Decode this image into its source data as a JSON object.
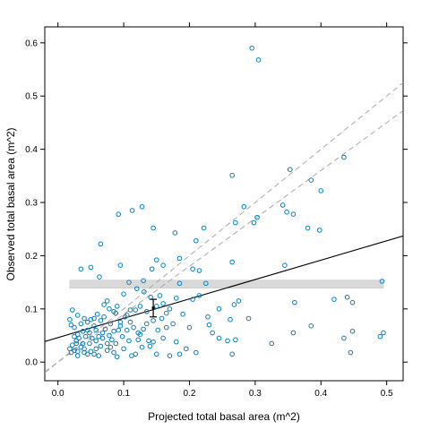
{
  "chart_data": {
    "type": "scatter",
    "xlabel": "Projected total basal area (m^2)",
    "ylabel": "Observed total basal area (m^2)",
    "xlim": [
      -0.02,
      0.525
    ],
    "ylim": [
      -0.035,
      0.63
    ],
    "x_ticks": [
      0.0,
      0.1,
      0.2,
      0.3,
      0.4,
      0.5
    ],
    "x_tick_labels": [
      "0.0",
      "0.1",
      "0.2",
      "0.3",
      "0.4",
      "0.5"
    ],
    "y_ticks": [
      0.0,
      0.1,
      0.2,
      0.3,
      0.4,
      0.5,
      0.6
    ],
    "y_tick_labels": [
      "0.0",
      "0.1",
      "0.2",
      "0.3",
      "0.4",
      "0.5",
      "0.6"
    ],
    "grid": false,
    "point_color": "#0080c0",
    "points": [
      [
        0.295,
        0.59
      ],
      [
        0.305,
        0.568
      ],
      [
        0.435,
        0.385
      ],
      [
        0.353,
        0.362
      ],
      [
        0.385,
        0.342
      ],
      [
        0.4,
        0.322
      ],
      [
        0.265,
        0.351
      ],
      [
        0.342,
        0.295
      ],
      [
        0.283,
        0.292
      ],
      [
        0.348,
        0.282
      ],
      [
        0.358,
        0.278
      ],
      [
        0.303,
        0.272
      ],
      [
        0.298,
        0.262
      ],
      [
        0.27,
        0.262
      ],
      [
        0.38,
        0.252
      ],
      [
        0.398,
        0.248
      ],
      [
        0.128,
        0.292
      ],
      [
        0.092,
        0.278
      ],
      [
        0.113,
        0.285
      ],
      [
        0.145,
        0.252
      ],
      [
        0.222,
        0.252
      ],
      [
        0.178,
        0.243
      ],
      [
        0.065,
        0.222
      ],
      [
        0.21,
        0.228
      ],
      [
        0.265,
        0.188
      ],
      [
        0.345,
        0.182
      ],
      [
        0.185,
        0.195
      ],
      [
        0.16,
        0.182
      ],
      [
        0.205,
        0.175
      ],
      [
        0.05,
        0.178
      ],
      [
        0.095,
        0.182
      ],
      [
        0.035,
        0.175
      ],
      [
        0.063,
        0.16
      ],
      [
        0.215,
        0.172
      ],
      [
        0.15,
        0.192
      ],
      [
        0.143,
        0.175
      ],
      [
        0.13,
        0.153
      ],
      [
        0.108,
        0.15
      ],
      [
        0.493,
        0.152
      ],
      [
        0.185,
        0.148
      ],
      [
        0.225,
        0.148
      ],
      [
        0.12,
        0.138
      ],
      [
        0.131,
        0.132
      ],
      [
        0.141,
        0.122
      ],
      [
        0.1,
        0.128
      ],
      [
        0.155,
        0.125
      ],
      [
        0.18,
        0.12
      ],
      [
        0.205,
        0.118
      ],
      [
        0.215,
        0.125
      ],
      [
        0.36,
        0.112
      ],
      [
        0.42,
        0.118
      ],
      [
        0.44,
        0.122
      ],
      [
        0.448,
        0.112
      ],
      [
        0.275,
        0.115
      ],
      [
        0.268,
        0.108
      ],
      [
        0.245,
        0.1
      ],
      [
        0.228,
        0.085
      ],
      [
        0.19,
        0.09
      ],
      [
        0.165,
        0.092
      ],
      [
        0.118,
        0.098
      ],
      [
        0.09,
        0.105
      ],
      [
        0.075,
        0.115
      ],
      [
        0.07,
        0.108
      ],
      [
        0.078,
        0.1
      ],
      [
        0.085,
        0.095
      ],
      [
        0.06,
        0.09
      ],
      [
        0.055,
        0.082
      ],
      [
        0.05,
        0.08
      ],
      [
        0.04,
        0.082
      ],
      [
        0.03,
        0.088
      ],
      [
        0.022,
        0.098
      ],
      [
        0.018,
        0.08
      ],
      [
        0.02,
        0.07
      ],
      [
        0.025,
        0.065
      ],
      [
        0.035,
        0.072
      ],
      [
        0.045,
        0.075
      ],
      [
        0.065,
        0.078
      ],
      [
        0.08,
        0.072
      ],
      [
        0.095,
        0.068
      ],
      [
        0.105,
        0.06
      ],
      [
        0.125,
        0.052
      ],
      [
        0.11,
        0.075
      ],
      [
        0.145,
        0.078
      ],
      [
        0.158,
        0.082
      ],
      [
        0.175,
        0.072
      ],
      [
        0.2,
        0.065
      ],
      [
        0.235,
        0.055
      ],
      [
        0.245,
        0.045
      ],
      [
        0.258,
        0.04
      ],
      [
        0.23,
        0.07
      ],
      [
        0.262,
        0.08
      ],
      [
        0.29,
        0.082
      ],
      [
        0.385,
        0.068
      ],
      [
        0.358,
        0.055
      ],
      [
        0.435,
        0.045
      ],
      [
        0.448,
        0.058
      ],
      [
        0.49,
        0.048
      ],
      [
        0.495,
        0.055
      ],
      [
        0.445,
        0.018
      ],
      [
        0.325,
        0.035
      ],
      [
        0.27,
        0.042
      ],
      [
        0.265,
        0.015
      ],
      [
        0.195,
        0.025
      ],
      [
        0.18,
        0.038
      ],
      [
        0.16,
        0.045
      ],
      [
        0.145,
        0.038
      ],
      [
        0.14,
        0.03
      ],
      [
        0.15,
        0.015
      ],
      [
        0.17,
        0.012
      ],
      [
        0.185,
        0.015
      ],
      [
        0.21,
        0.018
      ],
      [
        0.118,
        0.015
      ],
      [
        0.1,
        0.025
      ],
      [
        0.085,
        0.018
      ],
      [
        0.075,
        0.022
      ],
      [
        0.065,
        0.03
      ],
      [
        0.058,
        0.025
      ],
      [
        0.05,
        0.02
      ],
      [
        0.045,
        0.015
      ],
      [
        0.04,
        0.018
      ],
      [
        0.035,
        0.028
      ],
      [
        0.03,
        0.02
      ],
      [
        0.025,
        0.022
      ],
      [
        0.02,
        0.018
      ],
      [
        0.018,
        0.025
      ],
      [
        0.022,
        0.032
      ],
      [
        0.028,
        0.04
      ],
      [
        0.032,
        0.045
      ],
      [
        0.038,
        0.035
      ],
      [
        0.042,
        0.048
      ],
      [
        0.048,
        0.055
      ],
      [
        0.052,
        0.045
      ],
      [
        0.058,
        0.04
      ],
      [
        0.062,
        0.048
      ],
      [
        0.068,
        0.055
      ],
      [
        0.072,
        0.062
      ],
      [
        0.078,
        0.05
      ],
      [
        0.082,
        0.042
      ],
      [
        0.088,
        0.035
      ],
      [
        0.092,
        0.06
      ],
      [
        0.098,
        0.048
      ],
      [
        0.108,
        0.04
      ],
      [
        0.115,
        0.065
      ],
      [
        0.122,
        0.055
      ],
      [
        0.13,
        0.062
      ],
      [
        0.135,
        0.072
      ],
      [
        0.102,
        0.085
      ],
      [
        0.088,
        0.092
      ],
      [
        0.07,
        0.085
      ],
      [
        0.055,
        0.068
      ],
      [
        0.045,
        0.06
      ],
      [
        0.038,
        0.058
      ],
      [
        0.03,
        0.052
      ],
      [
        0.025,
        0.048
      ],
      [
        0.062,
        0.012
      ],
      [
        0.09,
        0.01
      ],
      [
        0.112,
        0.012
      ],
      [
        0.03,
        0.012
      ],
      [
        0.055,
        0.015
      ],
      [
        0.04,
        0.025
      ],
      [
        0.048,
        0.035
      ],
      [
        0.058,
        0.06
      ],
      [
        0.068,
        0.045
      ],
      [
        0.075,
        0.035
      ],
      [
        0.085,
        0.058
      ],
      [
        0.095,
        0.075
      ],
      [
        0.105,
        0.088
      ],
      [
        0.11,
        0.098
      ],
      [
        0.125,
        0.105
      ],
      [
        0.135,
        0.095
      ],
      [
        0.15,
        0.105
      ],
      [
        0.16,
        0.11
      ],
      [
        0.17,
        0.1
      ],
      [
        0.152,
        0.06
      ],
      [
        0.165,
        0.065
      ],
      [
        0.138,
        0.04
      ],
      [
        0.128,
        0.028
      ],
      [
        0.122,
        0.042
      ],
      [
        0.08,
        0.028
      ],
      [
        0.028,
        0.035
      ]
    ],
    "lines": [
      {
        "style": "solid",
        "color": "#000000",
        "intercept": 0.046,
        "slope": 0.364
      },
      {
        "style": "dashed",
        "color": "#a0a0a0",
        "intercept": 0.0,
        "slope": 1.0
      },
      {
        "style": "dashed",
        "color": "#a0a0a0",
        "intercept": 0.0,
        "slope": 0.9
      }
    ],
    "band": {
      "x": [
        0.018,
        0.495
      ],
      "y": [
        0.139,
        0.154
      ],
      "color": "#d9d9d9"
    },
    "error_bar": {
      "x": 0.145,
      "y": 0.102,
      "low": 0.085,
      "high": 0.118
    }
  }
}
